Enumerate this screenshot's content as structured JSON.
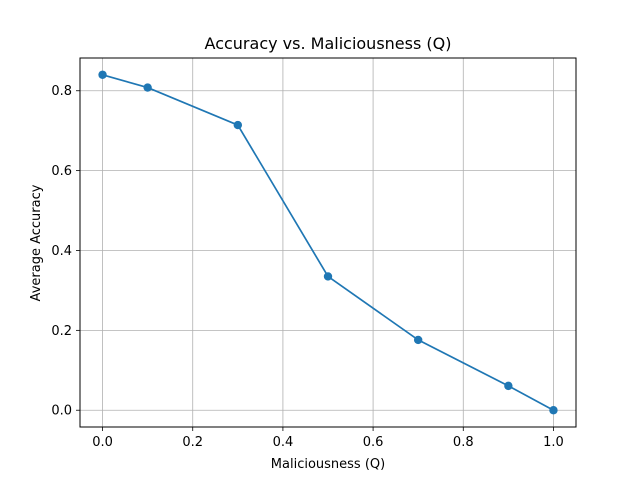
{
  "chart_data": {
    "type": "line",
    "title": "Accuracy vs. Maliciousness (Q)",
    "xlabel": "Maliciousness (Q)",
    "ylabel": "Average Accuracy",
    "xlim": [
      -0.05,
      1.05
    ],
    "ylim": [
      -0.042,
      0.882
    ],
    "xticks": [
      0.0,
      0.2,
      0.4,
      0.6,
      0.8,
      1.0
    ],
    "xtick_labels": [
      "0.0",
      "0.2",
      "0.4",
      "0.6",
      "0.8",
      "1.0"
    ],
    "yticks": [
      0.0,
      0.2,
      0.4,
      0.6,
      0.8
    ],
    "ytick_labels": [
      "0.0",
      "0.2",
      "0.4",
      "0.6",
      "0.8"
    ],
    "grid": true,
    "series": [
      {
        "color": "#1f77b4",
        "marker": "circle",
        "x": [
          0.0,
          0.1,
          0.3,
          0.5,
          0.7,
          0.9,
          1.0
        ],
        "y": [
          0.84,
          0.808,
          0.714,
          0.335,
          0.176,
          0.061,
          0.0
        ]
      }
    ]
  }
}
